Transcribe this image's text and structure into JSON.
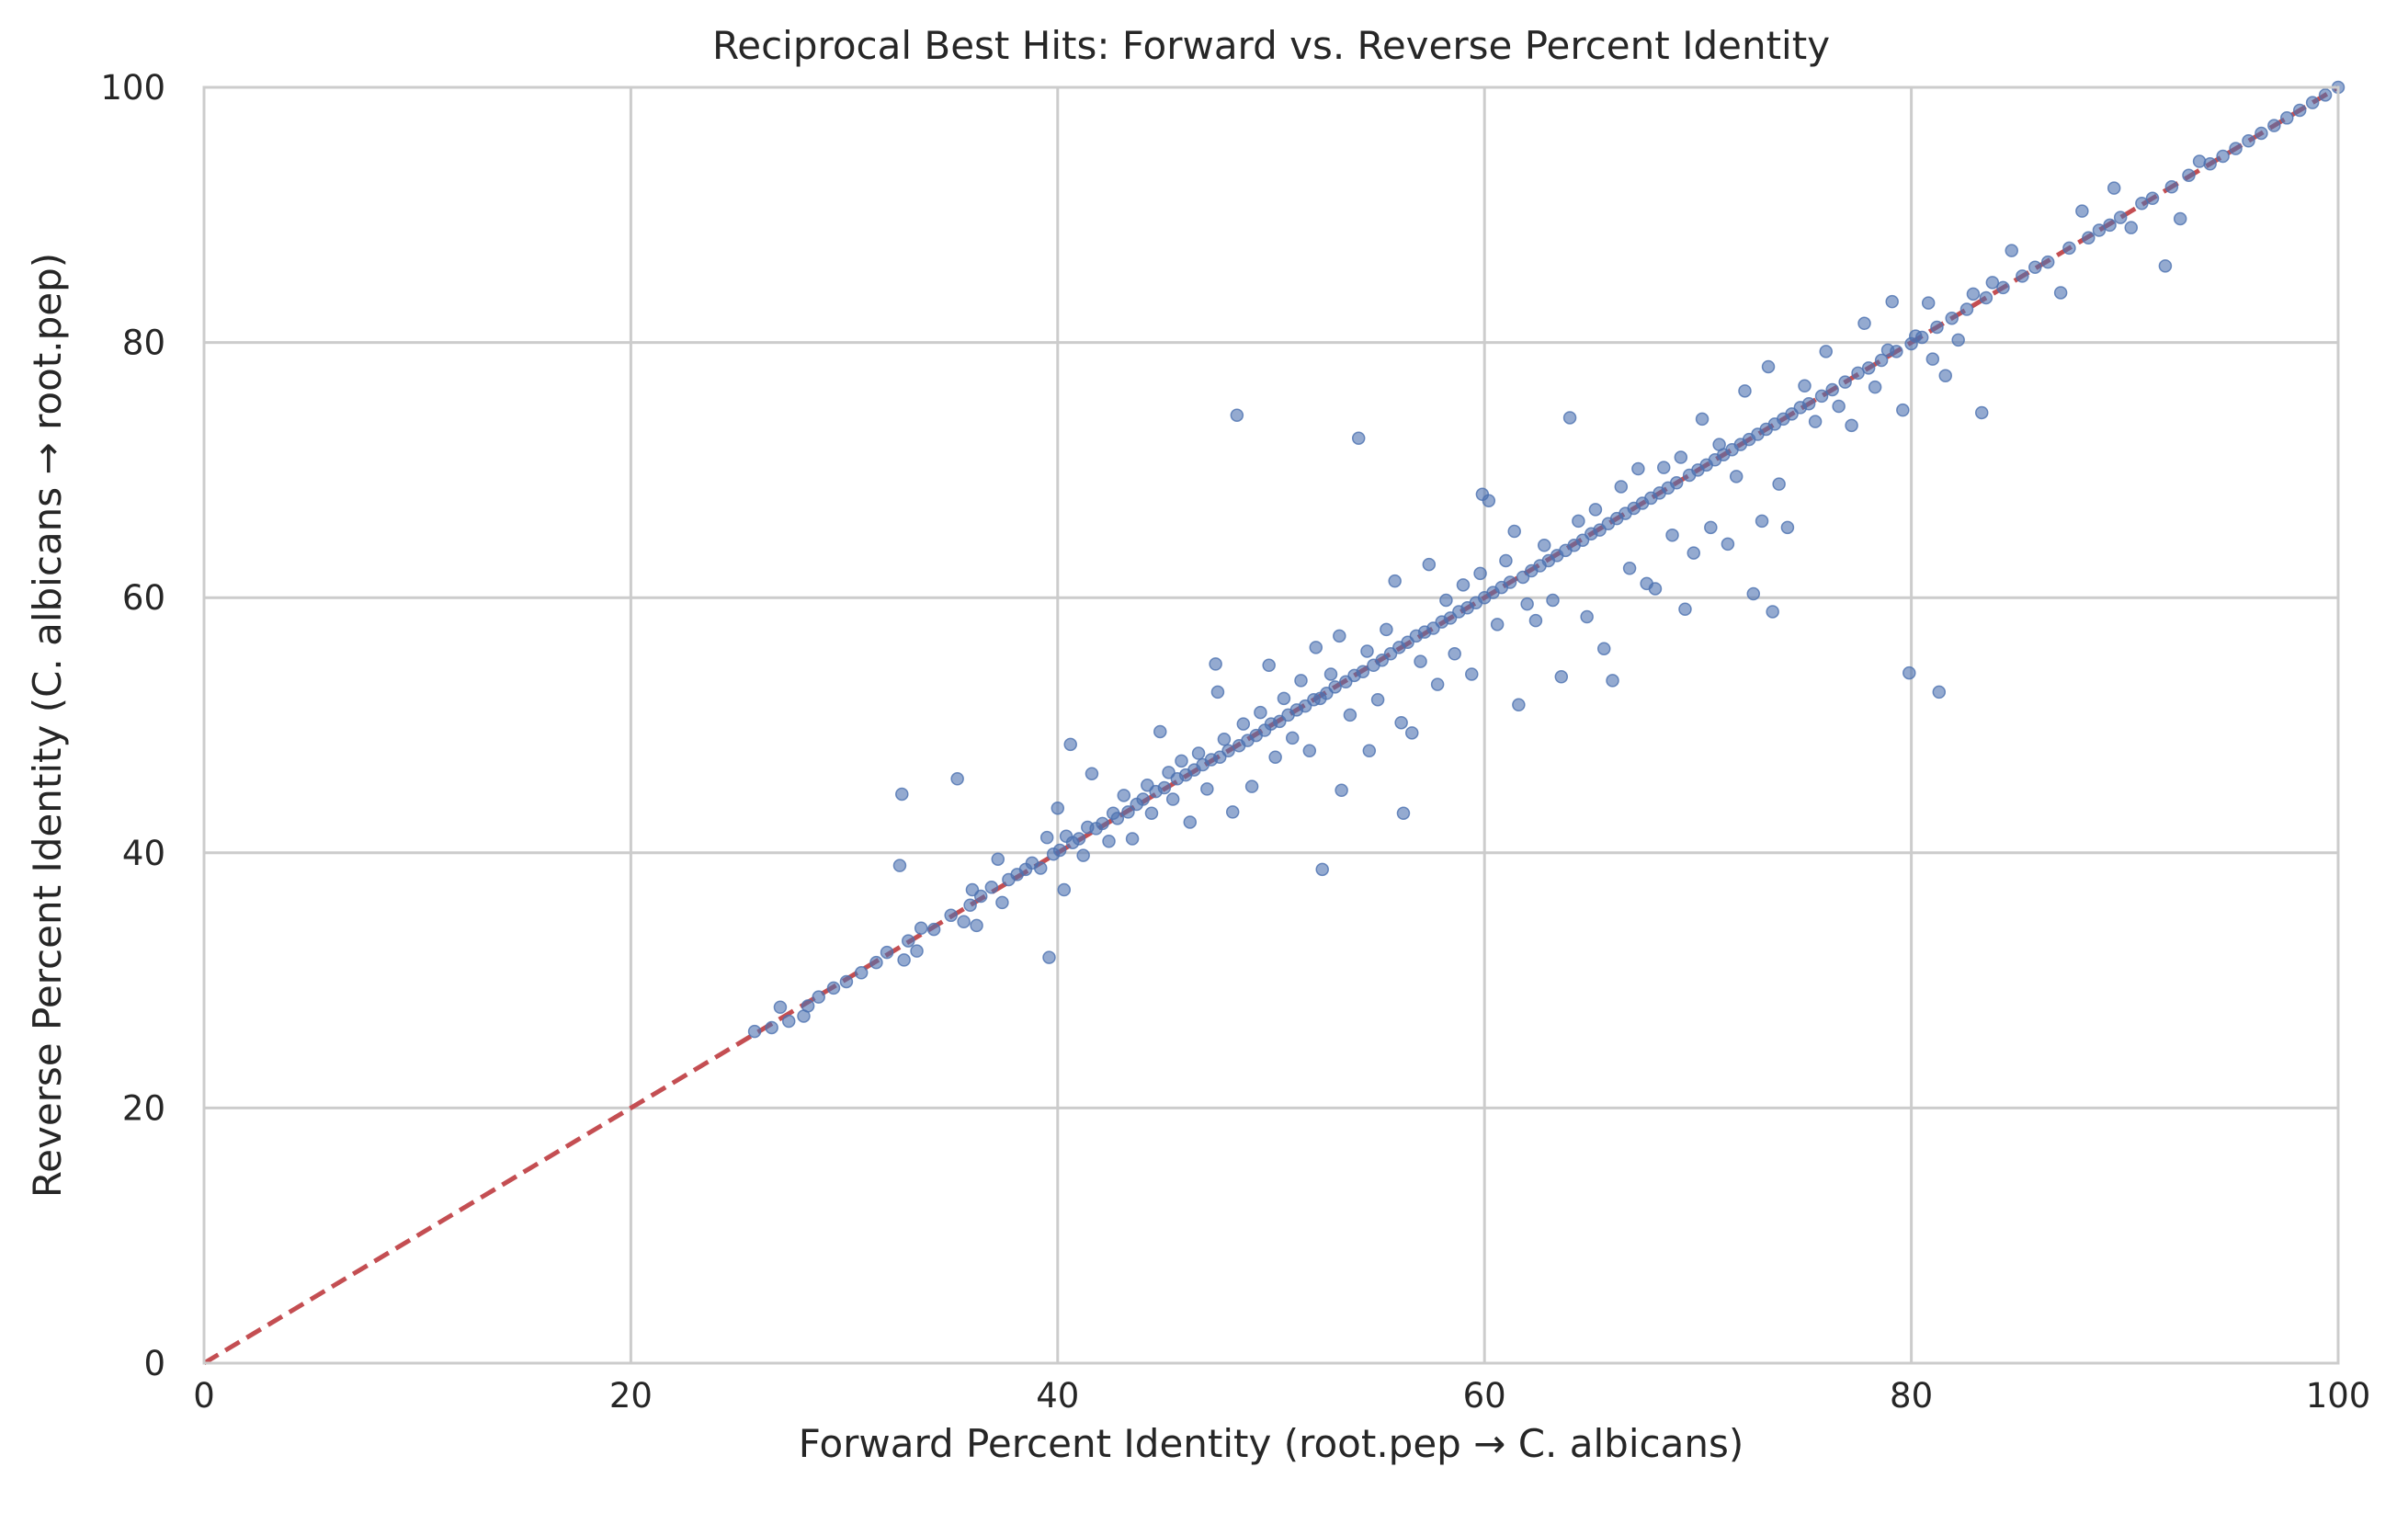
{
  "chart_data": {
    "type": "scatter",
    "title": "Reciprocal Best Hits: Forward vs. Reverse Percent Identity",
    "xlabel": "Forward Percent Identity (root.pep → C. albicans)",
    "ylabel": "Reverse Percent Identity (C. albicans → root.pep)",
    "xlim": [
      0,
      100
    ],
    "ylim": [
      0,
      100
    ],
    "xticks": [
      0,
      20,
      40,
      60,
      80,
      100
    ],
    "yticks": [
      0,
      20,
      40,
      60,
      80,
      100
    ],
    "grid": true,
    "point_color": "#4c72b0",
    "reference_line": {
      "x": [
        0,
        100
      ],
      "y": [
        0,
        100
      ],
      "style": "dashed",
      "color": "#c44e52"
    },
    "series": [
      {
        "points": [
          [
            25.8,
            26.0
          ],
          [
            26.6,
            26.3
          ],
          [
            27.0,
            27.9
          ],
          [
            27.4,
            26.8
          ],
          [
            28.1,
            27.2
          ],
          [
            28.3,
            28.0
          ],
          [
            28.8,
            28.7
          ],
          [
            29.5,
            29.4
          ],
          [
            30.1,
            29.9
          ],
          [
            30.8,
            30.6
          ],
          [
            31.5,
            31.4
          ],
          [
            32.0,
            32.2
          ],
          [
            32.6,
            39.0
          ],
          [
            32.7,
            44.6
          ],
          [
            32.8,
            31.6
          ],
          [
            33.0,
            33.1
          ],
          [
            33.4,
            32.3
          ],
          [
            33.6,
            34.1
          ],
          [
            34.2,
            34.0
          ],
          [
            35.0,
            35.1
          ],
          [
            35.3,
            45.8
          ],
          [
            35.6,
            34.6
          ],
          [
            35.9,
            35.9
          ],
          [
            36.0,
            37.1
          ],
          [
            36.2,
            34.3
          ],
          [
            36.4,
            36.6
          ],
          [
            36.9,
            37.3
          ],
          [
            37.2,
            39.5
          ],
          [
            37.4,
            36.1
          ],
          [
            37.7,
            37.9
          ],
          [
            38.1,
            38.3
          ],
          [
            38.5,
            38.7
          ],
          [
            38.8,
            39.2
          ],
          [
            39.2,
            38.8
          ],
          [
            39.5,
            41.2
          ],
          [
            39.6,
            31.8
          ],
          [
            39.8,
            39.9
          ],
          [
            40.0,
            43.5
          ],
          [
            40.1,
            40.2
          ],
          [
            40.3,
            37.1
          ],
          [
            40.4,
            41.3
          ],
          [
            40.6,
            48.5
          ],
          [
            40.7,
            40.8
          ],
          [
            41.0,
            41.1
          ],
          [
            41.2,
            39.8
          ],
          [
            41.4,
            42.0
          ],
          [
            41.6,
            46.2
          ],
          [
            41.8,
            41.9
          ],
          [
            42.1,
            42.3
          ],
          [
            42.4,
            40.9
          ],
          [
            42.6,
            43.1
          ],
          [
            42.8,
            42.7
          ],
          [
            43.1,
            44.5
          ],
          [
            43.3,
            43.2
          ],
          [
            43.5,
            41.1
          ],
          [
            43.7,
            43.8
          ],
          [
            44.0,
            44.2
          ],
          [
            44.2,
            45.3
          ],
          [
            44.4,
            43.1
          ],
          [
            44.6,
            44.8
          ],
          [
            44.8,
            49.5
          ],
          [
            45.0,
            45.1
          ],
          [
            45.2,
            46.3
          ],
          [
            45.4,
            44.2
          ],
          [
            45.6,
            45.8
          ],
          [
            45.8,
            47.2
          ],
          [
            46.0,
            46.1
          ],
          [
            46.2,
            42.4
          ],
          [
            46.4,
            46.5
          ],
          [
            46.6,
            47.8
          ],
          [
            46.8,
            46.9
          ],
          [
            47.0,
            45.0
          ],
          [
            47.2,
            47.3
          ],
          [
            47.4,
            54.8
          ],
          [
            47.5,
            52.6
          ],
          [
            47.6,
            47.5
          ],
          [
            47.8,
            48.9
          ],
          [
            48.0,
            48.0
          ],
          [
            48.2,
            43.2
          ],
          [
            48.4,
            74.3
          ],
          [
            48.5,
            48.4
          ],
          [
            48.7,
            50.1
          ],
          [
            48.9,
            48.8
          ],
          [
            49.1,
            45.2
          ],
          [
            49.3,
            49.2
          ],
          [
            49.5,
            51.0
          ],
          [
            49.7,
            49.6
          ],
          [
            49.9,
            54.7
          ],
          [
            50.0,
            50.1
          ],
          [
            50.2,
            47.5
          ],
          [
            50.4,
            50.3
          ],
          [
            50.6,
            52.1
          ],
          [
            50.8,
            50.8
          ],
          [
            51.0,
            49.0
          ],
          [
            51.2,
            51.2
          ],
          [
            51.4,
            53.5
          ],
          [
            51.6,
            51.5
          ],
          [
            51.8,
            48.0
          ],
          [
            52.0,
            52.0
          ],
          [
            52.1,
            56.1
          ],
          [
            52.3,
            52.1
          ],
          [
            52.4,
            38.7
          ],
          [
            52.6,
            52.5
          ],
          [
            52.8,
            54.0
          ],
          [
            53.0,
            53.0
          ],
          [
            53.2,
            57.0
          ],
          [
            53.3,
            44.9
          ],
          [
            53.5,
            53.4
          ],
          [
            53.7,
            50.8
          ],
          [
            53.9,
            53.9
          ],
          [
            54.1,
            72.5
          ],
          [
            54.3,
            54.2
          ],
          [
            54.5,
            55.8
          ],
          [
            54.6,
            48.0
          ],
          [
            54.8,
            54.7
          ],
          [
            55.0,
            52.0
          ],
          [
            55.2,
            55.1
          ],
          [
            55.4,
            57.5
          ],
          [
            55.6,
            55.6
          ],
          [
            55.8,
            61.3
          ],
          [
            56.0,
            56.1
          ],
          [
            56.1,
            50.2
          ],
          [
            56.2,
            43.1
          ],
          [
            56.4,
            56.5
          ],
          [
            56.6,
            49.4
          ],
          [
            56.8,
            57.0
          ],
          [
            57.0,
            55.0
          ],
          [
            57.2,
            57.3
          ],
          [
            57.4,
            62.6
          ],
          [
            57.6,
            57.6
          ],
          [
            57.8,
            53.2
          ],
          [
            58.0,
            58.1
          ],
          [
            58.2,
            59.8
          ],
          [
            58.4,
            58.4
          ],
          [
            58.6,
            55.6
          ],
          [
            58.8,
            58.9
          ],
          [
            59.0,
            61.0
          ],
          [
            59.2,
            59.2
          ],
          [
            59.4,
            54.0
          ],
          [
            59.6,
            59.6
          ],
          [
            59.8,
            61.9
          ],
          [
            59.9,
            68.1
          ],
          [
            60.0,
            60.0
          ],
          [
            60.2,
            67.6
          ],
          [
            60.4,
            60.4
          ],
          [
            60.6,
            57.9
          ],
          [
            60.8,
            60.8
          ],
          [
            61.0,
            62.9
          ],
          [
            61.2,
            61.2
          ],
          [
            61.4,
            65.2
          ],
          [
            61.6,
            51.6
          ],
          [
            61.8,
            61.6
          ],
          [
            62.0,
            59.5
          ],
          [
            62.2,
            62.1
          ],
          [
            62.4,
            58.2
          ],
          [
            62.6,
            62.5
          ],
          [
            62.8,
            64.1
          ],
          [
            63.0,
            62.9
          ],
          [
            63.2,
            59.8
          ],
          [
            63.4,
            63.3
          ],
          [
            63.6,
            53.8
          ],
          [
            63.8,
            63.7
          ],
          [
            64.0,
            74.1
          ],
          [
            64.2,
            64.1
          ],
          [
            64.4,
            66.0
          ],
          [
            64.6,
            64.5
          ],
          [
            64.8,
            58.5
          ],
          [
            65.0,
            65.0
          ],
          [
            65.2,
            66.9
          ],
          [
            65.4,
            65.3
          ],
          [
            65.6,
            56.0
          ],
          [
            65.8,
            65.8
          ],
          [
            66.0,
            53.5
          ],
          [
            66.2,
            66.2
          ],
          [
            66.4,
            68.7
          ],
          [
            66.6,
            66.6
          ],
          [
            66.8,
            62.3
          ],
          [
            67.0,
            67.0
          ],
          [
            67.2,
            70.1
          ],
          [
            67.4,
            67.4
          ],
          [
            67.6,
            61.1
          ],
          [
            67.8,
            67.8
          ],
          [
            68.0,
            60.7
          ],
          [
            68.2,
            68.2
          ],
          [
            68.4,
            70.2
          ],
          [
            68.6,
            68.6
          ],
          [
            68.8,
            64.9
          ],
          [
            69.0,
            69.0
          ],
          [
            69.2,
            71.0
          ],
          [
            69.4,
            59.1
          ],
          [
            69.6,
            69.6
          ],
          [
            69.8,
            63.5
          ],
          [
            70.0,
            70.0
          ],
          [
            70.2,
            74.0
          ],
          [
            70.4,
            70.4
          ],
          [
            70.6,
            65.5
          ],
          [
            70.8,
            70.8
          ],
          [
            71.0,
            72.0
          ],
          [
            71.2,
            71.2
          ],
          [
            71.4,
            64.2
          ],
          [
            71.6,
            71.6
          ],
          [
            71.8,
            69.5
          ],
          [
            72.0,
            72.0
          ],
          [
            72.2,
            76.2
          ],
          [
            72.4,
            72.4
          ],
          [
            72.6,
            60.3
          ],
          [
            72.8,
            72.8
          ],
          [
            73.0,
            66.0
          ],
          [
            73.2,
            73.2
          ],
          [
            73.3,
            78.1
          ],
          [
            73.5,
            58.9
          ],
          [
            73.6,
            73.6
          ],
          [
            73.8,
            68.9
          ],
          [
            74.0,
            74.0
          ],
          [
            74.2,
            65.5
          ],
          [
            74.4,
            74.4
          ],
          [
            74.8,
            74.9
          ],
          [
            75.0,
            76.6
          ],
          [
            75.2,
            75.2
          ],
          [
            75.5,
            73.8
          ],
          [
            75.8,
            75.8
          ],
          [
            76.0,
            79.3
          ],
          [
            76.3,
            76.3
          ],
          [
            76.6,
            75.0
          ],
          [
            76.9,
            76.9
          ],
          [
            77.2,
            73.5
          ],
          [
            77.5,
            77.6
          ],
          [
            77.8,
            81.5
          ],
          [
            78.0,
            78.0
          ],
          [
            78.3,
            76.5
          ],
          [
            78.6,
            78.6
          ],
          [
            78.9,
            79.4
          ],
          [
            79.1,
            83.2
          ],
          [
            79.3,
            79.3
          ],
          [
            79.6,
            74.7
          ],
          [
            79.9,
            54.1
          ],
          [
            80.0,
            79.9
          ],
          [
            80.2,
            80.5
          ],
          [
            80.5,
            80.4
          ],
          [
            80.8,
            83.1
          ],
          [
            81.0,
            78.7
          ],
          [
            81.2,
            81.2
          ],
          [
            81.3,
            52.6
          ],
          [
            81.6,
            77.4
          ],
          [
            81.9,
            81.9
          ],
          [
            82.2,
            80.2
          ],
          [
            82.6,
            82.6
          ],
          [
            82.9,
            83.8
          ],
          [
            83.3,
            74.5
          ],
          [
            83.5,
            83.5
          ],
          [
            83.8,
            84.7
          ],
          [
            84.3,
            84.3
          ],
          [
            84.7,
            87.2
          ],
          [
            85.2,
            85.2
          ],
          [
            85.8,
            85.9
          ],
          [
            86.4,
            86.3
          ],
          [
            87.0,
            83.9
          ],
          [
            87.4,
            87.4
          ],
          [
            88.0,
            90.3
          ],
          [
            88.3,
            88.2
          ],
          [
            88.8,
            88.8
          ],
          [
            89.3,
            89.2
          ],
          [
            89.5,
            92.1
          ],
          [
            89.8,
            89.8
          ],
          [
            90.3,
            89.0
          ],
          [
            90.8,
            90.9
          ],
          [
            91.3,
            91.3
          ],
          [
            91.9,
            86.0
          ],
          [
            92.2,
            92.2
          ],
          [
            92.6,
            89.7
          ],
          [
            93.0,
            93.1
          ],
          [
            93.5,
            94.2
          ],
          [
            94.0,
            94.0
          ],
          [
            94.6,
            94.6
          ],
          [
            95.2,
            95.2
          ],
          [
            95.8,
            95.8
          ],
          [
            96.4,
            96.4
          ],
          [
            97.0,
            97.0
          ],
          [
            97.6,
            97.6
          ],
          [
            98.2,
            98.2
          ],
          [
            98.8,
            98.8
          ],
          [
            99.4,
            99.4
          ],
          [
            100.0,
            100.0
          ]
        ]
      }
    ]
  }
}
